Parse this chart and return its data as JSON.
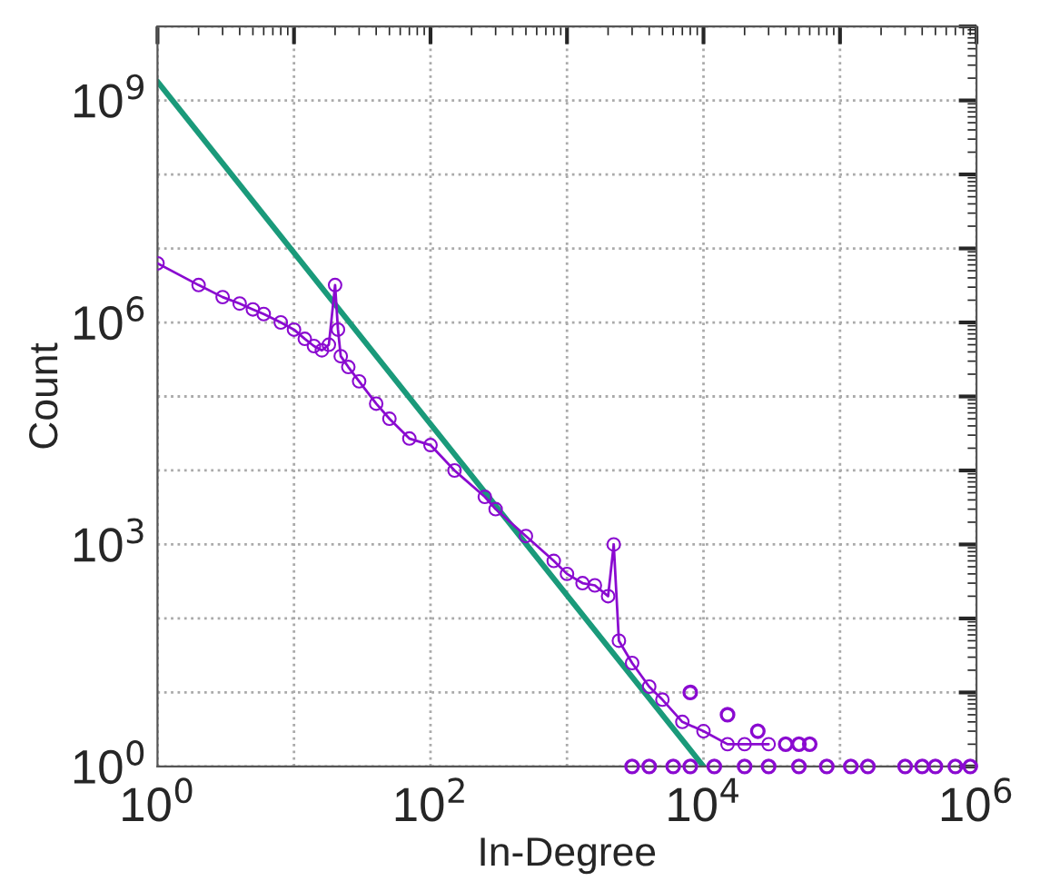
{
  "chart_data": {
    "type": "line",
    "xlabel": "In-Degree",
    "ylabel": "Count",
    "log": "xy",
    "grid": true,
    "xlim": [
      1,
      1000000
    ],
    "ylim": [
      1,
      10000000000
    ],
    "xticks": [
      {
        "value": 1,
        "label": "10$^{0}$"
      },
      {
        "value": 10,
        "label": null
      },
      {
        "value": 100,
        "label": "10$^{2}$"
      },
      {
        "value": 1000,
        "label": null
      },
      {
        "value": 10000,
        "label": "10$^{4}$"
      },
      {
        "value": 100000,
        "label": null
      },
      {
        "value": 1000000,
        "label": "10$^{6}$"
      }
    ],
    "yticks": [
      {
        "value": 1,
        "label": "10$^{0}$"
      },
      {
        "value": 10,
        "label": null
      },
      {
        "value": 100,
        "label": null
      },
      {
        "value": 1000,
        "label": "10$^{3}$"
      },
      {
        "value": 10000,
        "label": null
      },
      {
        "value": 100000,
        "label": null
      },
      {
        "value": 1000000,
        "label": "10$^{6}$"
      },
      {
        "value": 10000000,
        "label": null
      },
      {
        "value": 100000000,
        "label": null
      },
      {
        "value": 1000000000,
        "label": "10$^{9}$"
      },
      {
        "value": 10000000000,
        "label": null
      }
    ],
    "series": [
      {
        "marker": "circle",
        "color": "#8a0ad0",
        "x": [
          1,
          2,
          3,
          4,
          5,
          6,
          8,
          10,
          12,
          14,
          16,
          18,
          20,
          21,
          22,
          25,
          30,
          40,
          50,
          70,
          100,
          150,
          250,
          300,
          500,
          800,
          1000,
          1300,
          1600,
          2000,
          2200,
          2400,
          3000,
          4000,
          5000,
          7000,
          10000,
          15000,
          20000,
          30000
        ],
        "values": [
          6300000,
          3200000,
          2200000,
          1800000,
          1500000,
          1300000,
          1000000,
          800000,
          600000,
          480000,
          420000,
          500000,
          3200000,
          800000,
          350000,
          250000,
          160000,
          80000,
          50000,
          27000,
          22000,
          10000,
          4400,
          3000,
          1300,
          600,
          400,
          300,
          280,
          200,
          1000,
          50,
          25,
          12,
          8,
          4,
          3,
          2,
          2,
          2
        ]
      },
      {
        "type": "scatter",
        "marker": "circle",
        "color": "#8a0ad0",
        "x": [
          3000,
          4000,
          6000,
          8000,
          12000,
          20000,
          30000,
          50000,
          80000,
          120000,
          160000,
          300000,
          400000,
          500000,
          700000,
          900000,
          40000,
          50000,
          60000,
          8000,
          15000,
          25000
        ],
        "values": [
          1,
          1,
          1,
          1,
          1,
          1,
          1,
          1,
          1,
          1,
          1,
          1,
          1,
          1,
          1,
          1,
          2,
          2,
          2,
          10,
          5,
          3
        ]
      },
      {
        "marker": "none",
        "color": "#1a9a7a",
        "x": [
          1,
          10000
        ],
        "values": [
          1800000000,
          1
        ]
      }
    ]
  }
}
